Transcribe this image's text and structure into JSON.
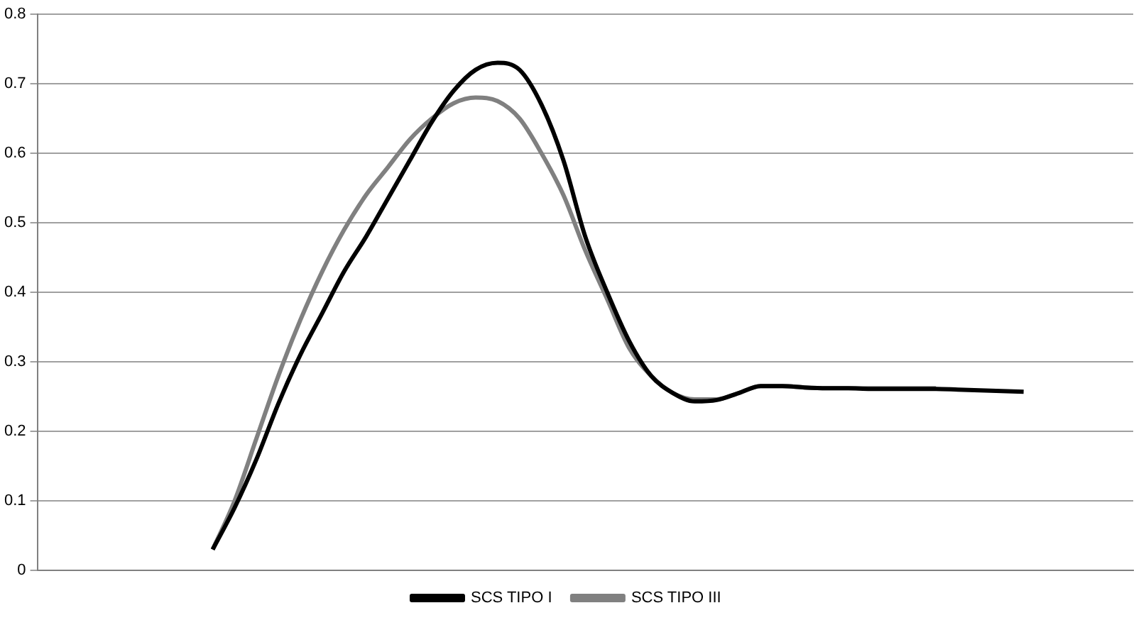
{
  "chart_data": {
    "type": "line",
    "categories": [
      null,
      null,
      null,
      null,
      null,
      null,
      null,
      null,
      null,
      null,
      null,
      null,
      null,
      null,
      null,
      null,
      null,
      null,
      null,
      null,
      null,
      null,
      null,
      null,
      null,
      null,
      null,
      null,
      null,
      null,
      null,
      null,
      null,
      null,
      null,
      null,
      null,
      null,
      null,
      null,
      null,
      null,
      null,
      null,
      null,
      null,
      null,
      null,
      null,
      null,
      null
    ],
    "series": [
      {
        "name": "SCS TIPO I",
        "color": "#000000",
        "values": [
          null,
          null,
          null,
          null,
          null,
          null,
          null,
          null,
          0.03,
          0.09,
          0.16,
          0.24,
          0.31,
          0.37,
          0.43,
          0.48,
          0.535,
          0.59,
          0.645,
          0.69,
          0.72,
          0.73,
          0.72,
          0.67,
          0.59,
          0.48,
          0.4,
          0.33,
          0.28,
          0.255,
          0.243,
          0.245,
          0.255,
          0.265,
          0.265,
          0.263,
          0.262,
          0.262,
          0.261,
          0.261,
          0.261,
          0.261,
          0.26,
          0.259,
          0.258,
          0.257,
          null,
          null,
          null,
          null,
          null
        ]
      },
      {
        "name": "SCS TIPO III",
        "color": "#808080",
        "values": [
          null,
          null,
          null,
          null,
          null,
          null,
          null,
          null,
          0.03,
          0.1,
          0.19,
          0.28,
          0.36,
          0.43,
          0.49,
          0.54,
          0.58,
          0.62,
          0.65,
          0.672,
          0.68,
          0.675,
          0.65,
          0.6,
          0.54,
          0.46,
          0.39,
          0.32,
          0.28,
          0.255,
          0.246,
          0.246,
          0.255,
          0.265,
          0.265,
          0.263,
          0.262,
          0.262,
          0.262,
          0.262,
          0.262,
          0.262,
          null,
          null,
          null,
          null,
          null,
          null,
          null,
          null,
          null
        ]
      }
    ],
    "ylim": [
      0,
      0.8
    ],
    "yticks": [
      0,
      0.1,
      0.2,
      0.3,
      0.4,
      0.5,
      0.6,
      0.7,
      0.8
    ],
    "grid": "y",
    "legend": "bottom",
    "marker": "none",
    "line_style": "solid"
  }
}
